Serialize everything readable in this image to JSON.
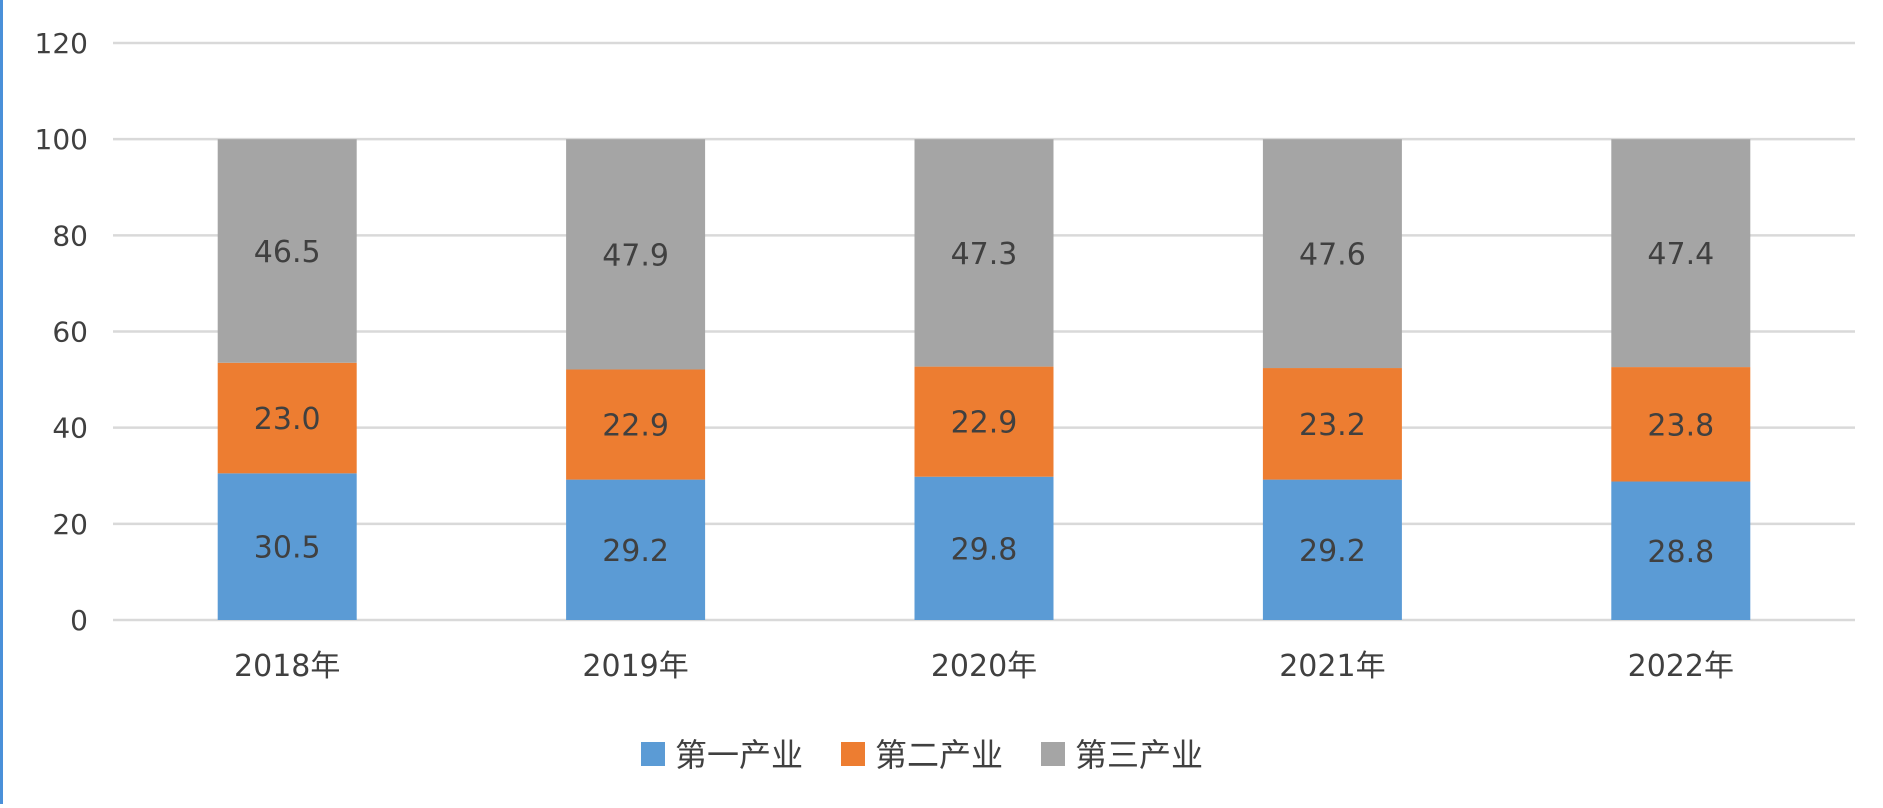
{
  "chart_data": {
    "type": "bar",
    "stacked": true,
    "categories": [
      "2018年",
      "2019年",
      "2020年",
      "2021年",
      "2022年"
    ],
    "series": [
      {
        "name": "第一产业",
        "values": [
          30.5,
          29.2,
          29.8,
          29.2,
          28.8
        ],
        "color": "#5b9bd5"
      },
      {
        "name": "第二产业",
        "values": [
          23.0,
          22.9,
          22.9,
          23.2,
          23.8
        ],
        "color": "#ed7d31"
      },
      {
        "name": "第三产业",
        "values": [
          46.5,
          47.9,
          47.3,
          47.6,
          47.4
        ],
        "color": "#a5a5a5"
      }
    ],
    "ylim": [
      0,
      120
    ],
    "yticks": [
      0,
      20,
      40,
      60,
      80,
      100,
      120
    ],
    "grid": true,
    "legend": "bottom-center",
    "title": "",
    "xlabel": "",
    "ylabel": ""
  }
}
